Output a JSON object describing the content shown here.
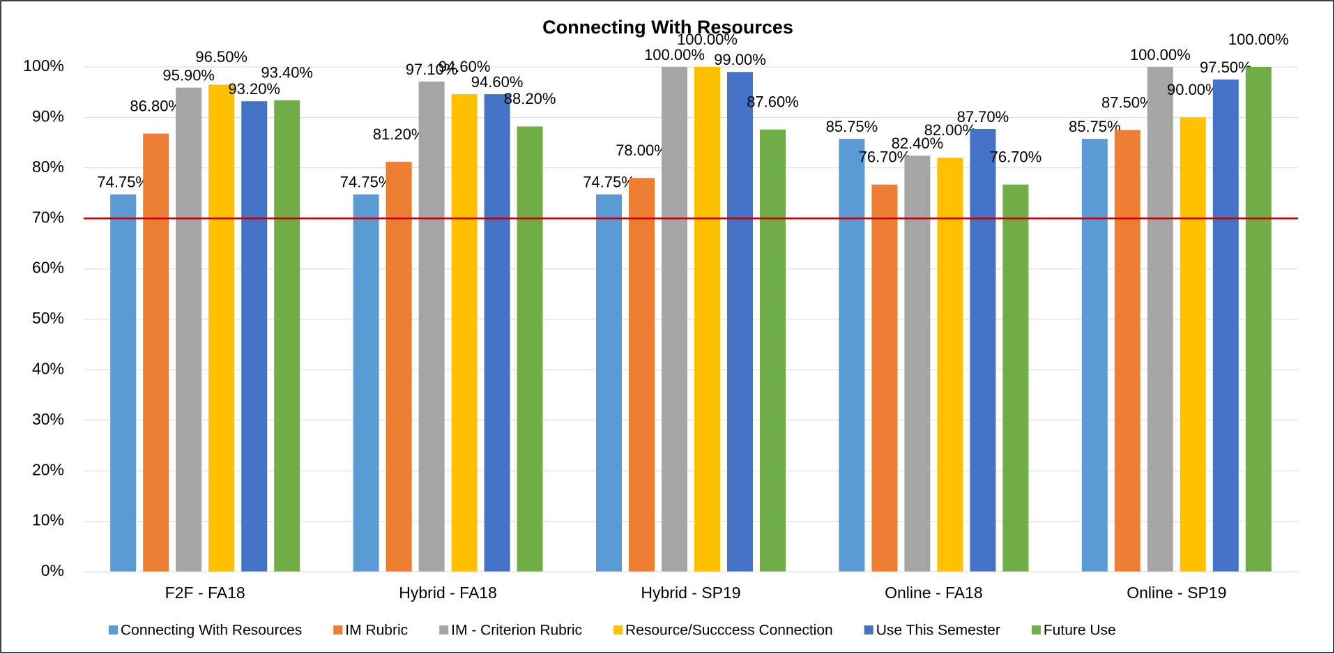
{
  "chart_data": {
    "type": "bar",
    "title": "Connecting With Resources",
    "categories": [
      "F2F - FA18",
      "Hybrid - FA18",
      "Hybrid - SP19",
      "Online - FA18",
      "Online - SP19"
    ],
    "series": [
      {
        "name": "Connecting With Resources",
        "color": "#5b9bd5",
        "values": [
          74.75,
          74.75,
          74.75,
          85.75,
          85.75
        ],
        "value_labels": [
          "74.75%",
          "74.75%",
          "74.75%",
          "85.75%",
          "85.75%"
        ]
      },
      {
        "name": "IM Rubric",
        "color": "#ed7d31",
        "values": [
          86.8,
          81.2,
          78,
          76.7,
          87.5
        ],
        "value_labels": [
          "86.80%",
          "81.20%",
          "78.00%",
          "76.70%",
          "87.50%"
        ]
      },
      {
        "name": "IM - Criterion Rubric",
        "color": "#a5a5a5",
        "values": [
          95.9,
          97.1,
          100,
          82.4,
          100
        ],
        "value_labels": [
          "95.90%",
          "97.10%",
          "100.00%",
          "82.40%",
          "100.00%"
        ]
      },
      {
        "name": "Resource/Succcess Connection",
        "color": "#ffc000",
        "values": [
          96.5,
          94.6,
          100,
          82,
          90
        ],
        "value_labels": [
          "96.50%",
          "94.60%",
          "100.00%",
          "82.00%",
          "90.00%"
        ]
      },
      {
        "name": "Use This Semester",
        "color": "#4472c4",
        "values": [
          93.2,
          94.6,
          99,
          87.7,
          97.5
        ],
        "value_labels": [
          "93.20%",
          "94.60%",
          "99.00%",
          "87.70%",
          "97.50%"
        ]
      },
      {
        "name": "Future Use",
        "color": "#70ad47",
        "values": [
          93.4,
          88.2,
          87.6,
          76.7,
          100
        ],
        "value_labels": [
          "93.40%",
          "88.20%",
          "87.60%",
          "76.70%",
          "100.00%"
        ]
      }
    ],
    "ylim": [
      0,
      100
    ],
    "yticks": [
      {
        "value": 0,
        "label": "0%"
      },
      {
        "value": 10,
        "label": "10%"
      },
      {
        "value": 20,
        "label": "20%"
      },
      {
        "value": 30,
        "label": "30%"
      },
      {
        "value": 40,
        "label": "40%"
      },
      {
        "value": 50,
        "label": "50%"
      },
      {
        "value": 60,
        "label": "60%"
      },
      {
        "value": 70,
        "label": "70%"
      },
      {
        "value": 80,
        "label": "80%"
      },
      {
        "value": 90,
        "label": "90%"
      },
      {
        "value": 100,
        "label": "100%"
      }
    ],
    "grid": true,
    "reference_line": {
      "value": 70,
      "color": "#c00000"
    },
    "legend": "bottom"
  }
}
